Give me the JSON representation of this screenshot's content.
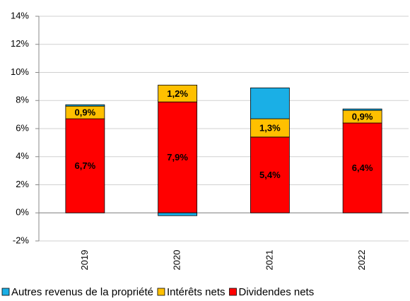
{
  "chart_data": {
    "type": "stacked_bar",
    "categories": [
      "2019",
      "2020",
      "2021",
      "2022"
    ],
    "series": [
      {
        "name": "Dividendes nets",
        "color": "#ff0000",
        "values": [
          6.7,
          7.9,
          5.4,
          6.4
        ],
        "value_labels": [
          "6,7%",
          "7,9%",
          "5,4%",
          "6,4%"
        ]
      },
      {
        "name": "Intérêts nets",
        "color": "#ffc000",
        "values": [
          0.9,
          1.2,
          1.3,
          0.9
        ],
        "value_labels": [
          "0,9%",
          "1,2%",
          "1,3%",
          "0,9%"
        ]
      },
      {
        "name": "Autres revenus de la propriété",
        "color": "#1aafe6",
        "values": [
          0.1,
          -0.2,
          2.2,
          0.1
        ]
      }
    ],
    "ylim": [
      -2,
      14
    ],
    "yticks": [
      {
        "value": -2,
        "label": "-2%"
      },
      {
        "value": 0,
        "label": "0%"
      },
      {
        "value": 2,
        "label": "2%"
      },
      {
        "value": 4,
        "label": "4%"
      },
      {
        "value": 6,
        "label": "6%"
      },
      {
        "value": 8,
        "label": "8%"
      },
      {
        "value": 10,
        "label": "10%"
      },
      {
        "value": 12,
        "label": "12%"
      },
      {
        "value": 14,
        "label": "14%"
      }
    ],
    "grid": true
  }
}
